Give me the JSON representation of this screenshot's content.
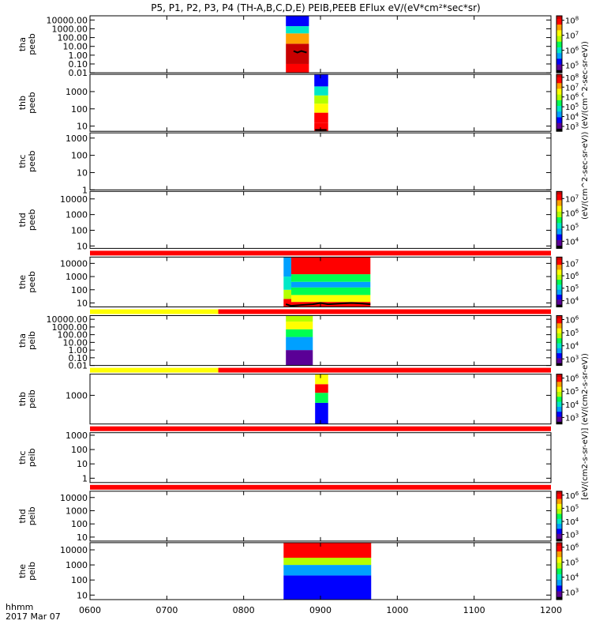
{
  "title": "P5, P1, P2, P3, P4 (TH-A,B,C,D,E) PEIB,PEEB EFlux eV/(eV*cm²*sec*sr)",
  "time_axis": {
    "label_line1": "hhmm",
    "label_line2": "2017 Mar 07",
    "ticks": [
      "0600",
      "0700",
      "0800",
      "0900",
      "1000",
      "1100",
      "1200"
    ],
    "tick_hours": [
      6,
      7,
      8,
      9,
      10,
      11,
      12
    ],
    "range_hours": [
      6,
      12
    ]
  },
  "colorbar_caption_eeb": "(eV/(cm^2-sec-sr-eV)) (eV/(cm^2-sec-sr-eV))",
  "colorbar_caption_ieb": "[eV/(cm2-s-sr-eV)] (eV/(cm2-s-sr-eV))",
  "colors": {
    "flag_red": "#ff0000",
    "flag_yellow": "#ffff00",
    "axis": "#000000",
    "spectrogram_scale": [
      "#000000",
      "#5a0096",
      "#0000ff",
      "#00a0ff",
      "#00e8c8",
      "#00ff50",
      "#b4ff00",
      "#ffff00",
      "#ffa000",
      "#ff0000",
      "#c80000"
    ]
  },
  "chart_data": {
    "type": "heatmap",
    "x_unit": "hours UT",
    "panels": [
      {
        "probe": "tha",
        "product": "peeb",
        "y_log": true,
        "y_ticks": [
          "10000.00",
          "1000.00",
          "100.00",
          "10.00",
          "1.00",
          "0.10",
          "0.01"
        ],
        "y_tick_values": [
          10000,
          1000,
          100,
          10,
          1,
          0.1,
          0.01
        ],
        "ylim": [
          0.01,
          30000
        ],
        "colorbar_ticks": [
          "10^8",
          "10^7",
          "10^6",
          "10^5"
        ],
        "colorbar_tick_exp": [
          8,
          7,
          6,
          5
        ],
        "colorbar_range": [
          4.5,
          8.3
        ],
        "flag_bar": null,
        "blocks": [
          {
            "x": [
              8.55,
              8.85
            ],
            "bands": [
              {
                "y": [
                  0.01,
                  0.1
                ],
                "level": 7.8
              },
              {
                "y": [
                  0.1,
                  20
                ],
                "level": 8.2
              },
              {
                "y": [
                  20,
                  300
                ],
                "level": 7.5
              },
              {
                "y": [
                  300,
                  2000
                ],
                "level": 6.2
              },
              {
                "y": [
                  2000,
                  30000
                ],
                "level": 5.4
              }
            ]
          }
        ],
        "trace": [
          [
            8.65,
            3
          ],
          [
            8.7,
            2
          ],
          [
            8.75,
            3
          ],
          [
            8.82,
            2
          ]
        ]
      },
      {
        "probe": "thb",
        "product": "peeb",
        "y_log": true,
        "y_ticks": [
          "1000",
          "100",
          "10"
        ],
        "y_tick_values": [
          1000,
          100,
          10
        ],
        "ylim": [
          5,
          10000
        ],
        "colorbar_ticks": [
          "10^8",
          "10^7",
          "10^6",
          "10^5",
          "10^4",
          "10^3"
        ],
        "colorbar_tick_exp": [
          8,
          7,
          6,
          5,
          4,
          3
        ],
        "colorbar_range": [
          2.5,
          8.3
        ],
        "flag_bar": null,
        "blocks": [
          {
            "x": [
              8.92,
              9.1
            ],
            "bands": [
              {
                "y": [
                  5,
                  15
                ],
                "level": 8.0
              },
              {
                "y": [
                  15,
                  60
                ],
                "level": 7.6
              },
              {
                "y": [
                  60,
                  200
                ],
                "level": 6.8
              },
              {
                "y": [
                  200,
                  600
                ],
                "level": 5.8
              },
              {
                "y": [
                  600,
                  2000
                ],
                "level": 4.8
              },
              {
                "y": [
                  2000,
                  10000
                ],
                "level": 3.8
              }
            ]
          }
        ],
        "trace": [
          [
            8.93,
            6
          ],
          [
            9.0,
            6
          ],
          [
            9.08,
            6
          ]
        ]
      },
      {
        "probe": "thc",
        "product": "peeb",
        "y_log": true,
        "y_ticks": [
          "1000",
          "100",
          "10",
          "1"
        ],
        "y_tick_values": [
          1000,
          100,
          10,
          1
        ],
        "ylim": [
          1,
          2000
        ],
        "colorbar_ticks": [],
        "colorbar_tick_exp": [],
        "colorbar_range": null,
        "flag_bar": null,
        "blocks": [],
        "trace": []
      },
      {
        "probe": "thd",
        "product": "peeb",
        "y_log": true,
        "y_ticks": [
          "10000",
          "1000",
          "100",
          "10"
        ],
        "y_tick_values": [
          10000,
          1000,
          100,
          10
        ],
        "ylim": [
          7,
          30000
        ],
        "colorbar_ticks": [
          "10^7",
          "10^6",
          "10^5",
          "10^4"
        ],
        "colorbar_tick_exp": [
          7,
          6,
          5,
          4
        ],
        "colorbar_range": [
          3.5,
          7.5
        ],
        "flag_bar": null,
        "blocks": [],
        "trace": []
      },
      {
        "probe": "the",
        "product": "peeb",
        "y_log": true,
        "y_ticks": [
          "10000",
          "1000",
          "100",
          "10"
        ],
        "y_tick_values": [
          10000,
          1000,
          100,
          10
        ],
        "ylim": [
          5,
          30000
        ],
        "colorbar_ticks": [
          "10^7",
          "10^6",
          "10^5",
          "10^4"
        ],
        "colorbar_tick_exp": [
          7,
          6,
          5,
          4
        ],
        "colorbar_range": [
          3.5,
          7.5
        ],
        "flag_bar": [
          {
            "x": [
              6,
              12
            ],
            "color": "red"
          }
        ],
        "blocks": [
          {
            "x": [
              8.52,
              8.62
            ],
            "bands": [
              {
                "y": [
                  5,
                  20
                ],
                "level": 7.0
              },
              {
                "y": [
                  20,
                  100
                ],
                "level": 5.8
              },
              {
                "y": [
                  100,
                  1000
                ],
                "level": 5.0
              },
              {
                "y": [
                  1000,
                  30000
                ],
                "level": 4.6
              }
            ]
          },
          {
            "x": [
              8.62,
              9.65
            ],
            "bands": [
              {
                "y": [
                  5,
                  12
                ],
                "level": 7.2
              },
              {
                "y": [
                  12,
                  40
                ],
                "level": 6.4
              },
              {
                "y": [
                  40,
                  150
                ],
                "level": 5.4
              },
              {
                "y": [
                  150,
                  400
                ],
                "level": 4.8
              },
              {
                "y": [
                  400,
                  1500
                ],
                "level": 5.6
              },
              {
                "y": [
                  1500,
                  30000
                ],
                "level": 7.2
              }
            ]
          }
        ],
        "trace": [
          [
            8.55,
            8
          ],
          [
            8.62,
            6
          ],
          [
            8.75,
            7
          ],
          [
            8.9,
            8
          ],
          [
            9.0,
            10
          ],
          [
            9.1,
            8
          ],
          [
            9.25,
            9
          ],
          [
            9.4,
            10
          ],
          [
            9.55,
            9
          ],
          [
            9.65,
            8
          ]
        ]
      },
      {
        "probe": "tha",
        "product": "peib",
        "y_log": true,
        "y_ticks": [
          "10000.00",
          "1000.00",
          "100.00",
          "10.00",
          "1.00",
          "0.10",
          "0.01"
        ],
        "y_tick_values": [
          10000,
          1000,
          100,
          10,
          1,
          0.1,
          0.01
        ],
        "ylim": [
          0.01,
          30000
        ],
        "colorbar_ticks": [
          "10^6",
          "10^5",
          "10^4",
          "10^3"
        ],
        "colorbar_tick_exp": [
          6,
          5,
          4,
          3
        ],
        "colorbar_range": [
          2.5,
          6.3
        ],
        "flag_bar": [
          {
            "x": [
              6,
              7.67
            ],
            "color": "yellow"
          },
          {
            "x": [
              7.67,
              12
            ],
            "color": "red"
          }
        ],
        "blocks": [
          {
            "x": [
              8.55,
              8.9
            ],
            "bands": [
              {
                "y": [
                  0.01,
                  1
                ],
                "level": 2.8
              },
              {
                "y": [
                  1,
                  50
                ],
                "level": 3.6
              },
              {
                "y": [
                  50,
                  500
                ],
                "level": 4.4
              },
              {
                "y": [
                  500,
                  5000
                ],
                "level": 5.2
              },
              {
                "y": [
                  5000,
                  30000
                ],
                "level": 4.6
              }
            ]
          }
        ],
        "trace": []
      },
      {
        "probe": "thb",
        "product": "peib",
        "y_log": true,
        "y_ticks": [
          "1000"
        ],
        "y_tick_values": [
          1000
        ],
        "ylim": [
          10,
          30000
        ],
        "colorbar_ticks": [
          "10^6",
          "10^5",
          "10^4",
          "10^3"
        ],
        "colorbar_tick_exp": [
          6,
          5,
          4,
          3
        ],
        "colorbar_range": [
          2.5,
          6.3
        ],
        "flag_bar": [
          {
            "x": [
              6,
              7.67
            ],
            "color": "yellow"
          },
          {
            "x": [
              7.67,
              12
            ],
            "color": "red"
          }
        ],
        "blocks": [
          {
            "x": [
              8.93,
              9.1
            ],
            "bands": [
              {
                "y": [
                  10,
                  300
                ],
                "level": 3.4
              },
              {
                "y": [
                  300,
                  1500
                ],
                "level": 4.4
              },
              {
                "y": [
                  1500,
                  6000
                ],
                "level": 5.8
              },
              {
                "y": [
                  6000,
                  30000
                ],
                "level": 5.0
              }
            ]
          }
        ],
        "trace": []
      },
      {
        "probe": "thc",
        "product": "peib",
        "y_log": true,
        "y_ticks": [
          "1000",
          "100",
          "10",
          "1"
        ],
        "y_tick_values": [
          1000,
          100,
          10,
          1
        ],
        "ylim": [
          0.5,
          1500
        ],
        "colorbar_ticks": [],
        "colorbar_tick_exp": [],
        "colorbar_range": null,
        "flag_bar": [
          {
            "x": [
              6,
              12
            ],
            "color": "red"
          }
        ],
        "blocks": [],
        "trace": []
      },
      {
        "probe": "thd",
        "product": "peib",
        "y_log": true,
        "y_ticks": [
          "10000",
          "1000",
          "100",
          "10"
        ],
        "y_tick_values": [
          10000,
          1000,
          100,
          10
        ],
        "ylim": [
          5,
          30000
        ],
        "colorbar_ticks": [
          "10^6",
          "10^5",
          "10^4",
          "10^3"
        ],
        "colorbar_tick_exp": [
          6,
          5,
          4,
          3
        ],
        "colorbar_range": [
          2.5,
          6.3
        ],
        "flag_bar": [
          {
            "x": [
              6,
              12
            ],
            "color": "red"
          }
        ],
        "blocks": [],
        "trace": []
      },
      {
        "probe": "the",
        "product": "peib",
        "y_log": true,
        "y_ticks": [
          "10000",
          "1000",
          "100",
          "10"
        ],
        "y_tick_values": [
          10000,
          1000,
          100,
          10
        ],
        "ylim": [
          5,
          30000
        ],
        "colorbar_ticks": [
          "10^6",
          "10^5",
          "10^4",
          "10^3"
        ],
        "colorbar_tick_exp": [
          6,
          5,
          4,
          3
        ],
        "colorbar_range": [
          2.5,
          6.3
        ],
        "flag_bar": null,
        "blocks": [
          {
            "x": [
              8.52,
              9.66
            ],
            "bands": [
              {
                "y": [
                  5,
                  200
                ],
                "level": 3.2
              },
              {
                "y": [
                  200,
                  1000
                ],
                "level": 3.8
              },
              {
                "y": [
                  1000,
                  3000
                ],
                "level": 4.8
              },
              {
                "y": [
                  3000,
                  10000
                ],
                "level": 5.8
              },
              {
                "y": [
                  10000,
                  30000
                ],
                "level": 6.0
              }
            ]
          }
        ],
        "trace": []
      }
    ]
  }
}
